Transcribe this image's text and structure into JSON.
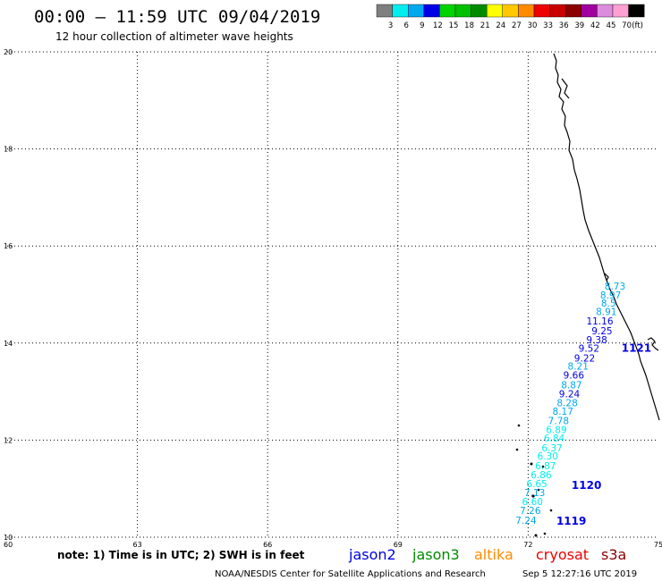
{
  "header": {
    "title": "00:00 – 11:59 UTC 09/04/2019",
    "subtitle": "12 hour collection of altimeter wave heights"
  },
  "legend": {
    "unit": "(ft)",
    "bins": [
      {
        "label": "3",
        "color": "#7f7f7f"
      },
      {
        "label": "6",
        "color": "#00eeee"
      },
      {
        "label": "9",
        "color": "#00a8ee"
      },
      {
        "label": "12",
        "color": "#0000e6"
      },
      {
        "label": "15",
        "color": "#00d400"
      },
      {
        "label": "18",
        "color": "#00c000"
      },
      {
        "label": "21",
        "color": "#008c00"
      },
      {
        "label": "24",
        "color": "#ffff00"
      },
      {
        "label": "27",
        "color": "#ffc800"
      },
      {
        "label": "30",
        "color": "#ff8c00"
      },
      {
        "label": "33",
        "color": "#ee0000"
      },
      {
        "label": "36",
        "color": "#c80000"
      },
      {
        "label": "39",
        "color": "#8c0000"
      },
      {
        "label": "42",
        "color": "#a000a0"
      },
      {
        "label": "45",
        "color": "#dc8cdc"
      },
      {
        "label": "70",
        "color": "#ffa0d2"
      },
      {
        "label": "",
        "color": "#000000"
      }
    ]
  },
  "map": {
    "lon_range": [
      60,
      75
    ],
    "lat_range": [
      10,
      20
    ],
    "lon_ticks": [
      "60",
      "63",
      "66",
      "69",
      "72",
      "75"
    ],
    "lat_ticks": [
      "20",
      "18",
      "16",
      "14",
      "12",
      "10"
    ],
    "grid": true
  },
  "track": {
    "points": [
      {
        "label": "8.73",
        "lon": 74.0,
        "lat": 15.1,
        "color": "#00a8ee"
      },
      {
        "label": "8.97",
        "lon": 73.9,
        "lat": 14.92,
        "color": "#00a8ee"
      },
      {
        "label": "8.5",
        "lon": 73.85,
        "lat": 14.75,
        "color": "#00a8ee"
      },
      {
        "label": "8.91",
        "lon": 73.8,
        "lat": 14.58,
        "color": "#00a8ee"
      },
      {
        "label": "11.16",
        "lon": 73.65,
        "lat": 14.38,
        "color": "#0000e6"
      },
      {
        "label": "9.25",
        "lon": 73.7,
        "lat": 14.18,
        "color": "#0000e6"
      },
      {
        "label": "9.38",
        "lon": 73.58,
        "lat": 14.0,
        "color": "#0000e6"
      },
      {
        "label": "9.52",
        "lon": 73.4,
        "lat": 13.82,
        "color": "#0000e6"
      },
      {
        "label": "9.22",
        "lon": 73.3,
        "lat": 13.62,
        "color": "#0000e6"
      },
      {
        "label": "8.21",
        "lon": 73.15,
        "lat": 13.45,
        "color": "#00a8ee"
      },
      {
        "label": "9.66",
        "lon": 73.05,
        "lat": 13.27,
        "color": "#0000e6"
      },
      {
        "label": "8.87",
        "lon": 73.0,
        "lat": 13.07,
        "color": "#00a8ee"
      },
      {
        "label": "9.24",
        "lon": 72.95,
        "lat": 12.88,
        "color": "#0000e6"
      },
      {
        "label": "8.28",
        "lon": 72.9,
        "lat": 12.7,
        "color": "#00a8ee"
      },
      {
        "label": "8.17",
        "lon": 72.8,
        "lat": 12.52,
        "color": "#00a8ee"
      },
      {
        "label": "7.78",
        "lon": 72.7,
        "lat": 12.33,
        "color": "#00a8ee"
      },
      {
        "label": "6.89",
        "lon": 72.65,
        "lat": 12.15,
        "color": "#00eeee"
      },
      {
        "label": "6.84",
        "lon": 72.6,
        "lat": 11.97,
        "color": "#00eeee"
      },
      {
        "label": "6.37",
        "lon": 72.55,
        "lat": 11.77,
        "color": "#00eeee"
      },
      {
        "label": "6.30",
        "lon": 72.45,
        "lat": 11.6,
        "color": "#00eeee"
      },
      {
        "label": "6.87",
        "lon": 72.4,
        "lat": 11.4,
        "color": "#00eeee"
      },
      {
        "label": "6.86",
        "lon": 72.3,
        "lat": 11.22,
        "color": "#00eeee"
      },
      {
        "label": "6.65",
        "lon": 72.2,
        "lat": 11.03,
        "color": "#00eeee"
      },
      {
        "label": "7.13",
        "lon": 72.15,
        "lat": 10.85,
        "color": "#00a8ee"
      },
      {
        "label": "6.60",
        "lon": 72.1,
        "lat": 10.66,
        "color": "#00eeee"
      },
      {
        "label": "7.26",
        "lon": 72.05,
        "lat": 10.48,
        "color": "#00a8ee"
      },
      {
        "label": "7.24",
        "lon": 71.95,
        "lat": 10.28,
        "color": "#00a8ee"
      }
    ],
    "passes": [
      {
        "label": "1121",
        "lon": 74.15,
        "lat": 13.82,
        "color": "#0000e6"
      },
      {
        "label": "1120",
        "lon": 73.0,
        "lat": 10.99,
        "color": "#0000e6"
      },
      {
        "label": "1119",
        "lon": 72.65,
        "lat": 10.26,
        "color": "#0000e6"
      }
    ]
  },
  "note": {
    "text": "note: 1) Time is in UTC; 2) SWH is in feet"
  },
  "satellites": [
    {
      "name": "jason2",
      "color": "#0000e6"
    },
    {
      "name": "jason3",
      "color": "#008c00"
    },
    {
      "name": "altika",
      "color": "#ff8c00"
    },
    {
      "name": "cryosat",
      "color": "#ee0000"
    },
    {
      "name": "s3a",
      "color": "#8c0000"
    }
  ],
  "footer": {
    "left": "NOAA/NESDIS Center for Satellite Applications and Research",
    "right": "Sep  5 12:27:16 UTC 2019"
  }
}
